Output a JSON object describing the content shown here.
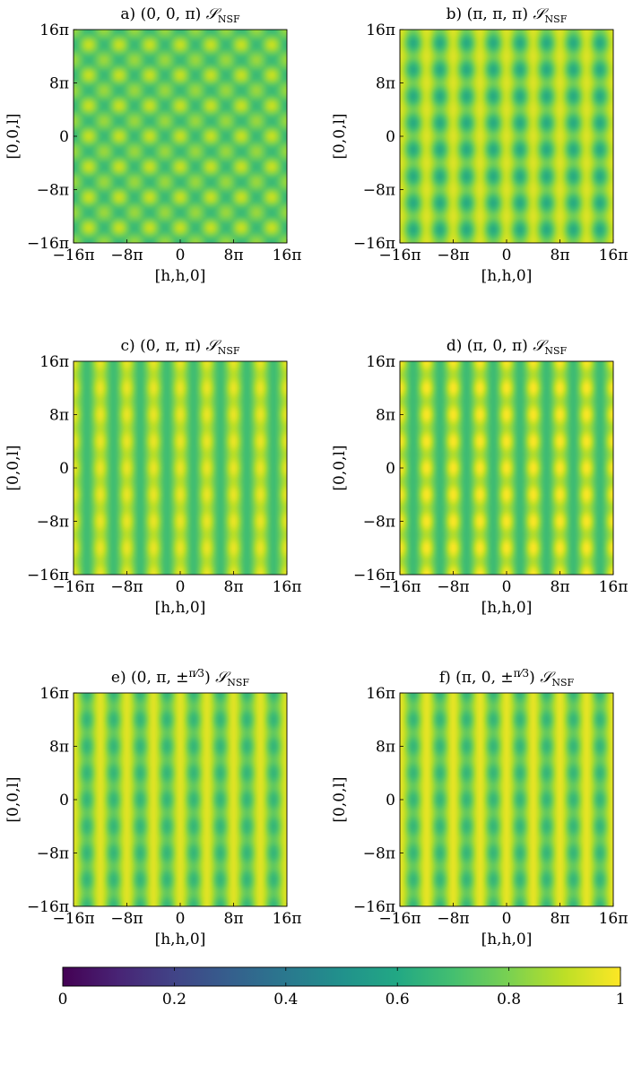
{
  "chart_data": [
    {
      "type": "heatmap",
      "panel": "a",
      "title_prefix": "a)",
      "title_expr": "(0, 0, π)",
      "title_symbol": "𝒮",
      "title_sub": "NSF",
      "xlabel": "[h,h,0]",
      "ylabel": "[0,0,l]",
      "xlim": [
        -16,
        16
      ],
      "ylim": [
        -16,
        16
      ],
      "axis_unit": "π",
      "xticks": [
        "−16π",
        "−8π",
        "0",
        "8π",
        "16π"
      ],
      "yticks": [
        "16π",
        "8π",
        "0",
        "−8π",
        "−16π"
      ],
      "zlim": [
        0,
        1
      ],
      "min_value": 0.55,
      "max_value": 0.95,
      "pattern": "checkered grid with bright nodes, ~7 x 7 repeats"
    },
    {
      "type": "heatmap",
      "panel": "b",
      "title_prefix": "b)",
      "title_expr": "(π, π, π)",
      "title_symbol": "𝒮",
      "title_sub": "NSF",
      "xlabel": "[h,h,0]",
      "ylabel": "[0,0,l]",
      "xlim": [
        -16,
        16
      ],
      "ylim": [
        -16,
        16
      ],
      "axis_unit": "π",
      "xticks": [
        "−16π",
        "−8π",
        "0",
        "8π",
        "16π"
      ],
      "yticks": [
        "16π",
        "8π",
        "0",
        "−8π",
        "−16π"
      ],
      "zlim": [
        0,
        1
      ],
      "min_value": 0.6,
      "max_value": 0.98,
      "pattern": "vertical bright stripes with spots, ~8 x 8 repeats"
    },
    {
      "type": "heatmap",
      "panel": "c",
      "title_prefix": "c)",
      "title_expr": "(0, π, π)",
      "title_symbol": "𝒮",
      "title_sub": "NSF",
      "xlabel": "[h,h,0]",
      "ylabel": "[0,0,l]",
      "xlim": [
        -16,
        16
      ],
      "ylim": [
        -16,
        16
      ],
      "axis_unit": "π",
      "xticks": [
        "−16π",
        "−8π",
        "0",
        "8π",
        "16π"
      ],
      "yticks": [
        "16π",
        "8π",
        "0",
        "−8π",
        "−16π"
      ],
      "zlim": [
        0,
        1
      ],
      "min_value": 0.62,
      "max_value": 0.97,
      "pattern": "vertical stripes with beads, ~8 x 8 repeats"
    },
    {
      "type": "heatmap",
      "panel": "d",
      "title_prefix": "d)",
      "title_expr": "(π, 0, π)",
      "title_symbol": "𝒮",
      "title_sub": "NSF",
      "xlabel": "[h,h,0]",
      "ylabel": "[0,0,l]",
      "xlim": [
        -16,
        16
      ],
      "ylim": [
        -16,
        16
      ],
      "axis_unit": "π",
      "xticks": [
        "−16π",
        "−8π",
        "0",
        "8π",
        "16π"
      ],
      "yticks": [
        "16π",
        "8π",
        "0",
        "−8π",
        "−16π"
      ],
      "zlim": [
        0,
        1
      ],
      "min_value": 0.62,
      "max_value": 0.99,
      "pattern": "vertical bright stripes with bright beads, ~8 x 8 repeats"
    },
    {
      "type": "heatmap",
      "panel": "e",
      "title_prefix": "e)",
      "title_expr": "(0, π, ±",
      "title_frac": "π/3",
      "title_close": ")",
      "title_symbol": "𝒮",
      "title_sub": "NSF",
      "xlabel": "[h,h,0]",
      "ylabel": "[0,0,l]",
      "xlim": [
        -16,
        16
      ],
      "ylim": [
        -16,
        16
      ],
      "axis_unit": "π",
      "xticks": [
        "−16π",
        "−8π",
        "0",
        "8π",
        "16π"
      ],
      "yticks": [
        "16π",
        "8π",
        "0",
        "−8π",
        "−16π"
      ],
      "zlim": [
        0,
        1
      ],
      "min_value": 0.62,
      "max_value": 0.96,
      "pattern": "vertical stripes with dark beads, ~8 x 8 repeats"
    },
    {
      "type": "heatmap",
      "panel": "f",
      "title_prefix": "f)",
      "title_expr": "(π, 0, ±",
      "title_frac": "π/3",
      "title_close": ")",
      "title_symbol": "𝒮",
      "title_sub": "NSF",
      "xlabel": "[h,h,0]",
      "ylabel": "[0,0,l]",
      "xlim": [
        -16,
        16
      ],
      "ylim": [
        -16,
        16
      ],
      "axis_unit": "π",
      "xticks": [
        "−16π",
        "−8π",
        "0",
        "8π",
        "16π"
      ],
      "yticks": [
        "16π",
        "8π",
        "0",
        "−8π",
        "−16π"
      ],
      "zlim": [
        0,
        1
      ],
      "min_value": 0.62,
      "max_value": 0.97,
      "pattern": "vertical stripes with dark beads, ~8 x 8 repeats"
    }
  ],
  "colorbar": {
    "colormap": "viridis",
    "range": [
      0,
      1
    ],
    "ticks": [
      "0",
      "0.2",
      "0.4",
      "0.6",
      "0.8",
      "1"
    ],
    "tick_values": [
      0,
      0.2,
      0.4,
      0.6,
      0.8,
      1
    ]
  }
}
